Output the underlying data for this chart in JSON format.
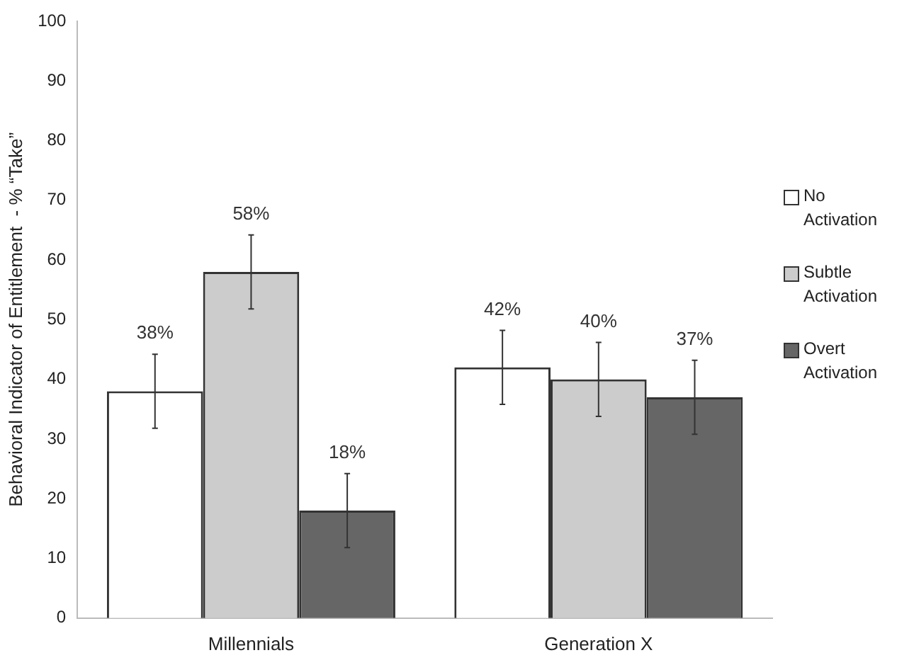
{
  "chart_data": {
    "type": "bar",
    "ylabel": "Behavioral Indicator of Entitlement  - % “Take”",
    "categories": [
      "Millennials",
      "Generation X"
    ],
    "series": [
      {
        "name": "No Activation",
        "color": "#ffffff",
        "values": [
          38,
          42
        ],
        "errors": [
          6.2,
          6.2
        ],
        "value_labels": [
          "38%",
          "42%"
        ]
      },
      {
        "name": "Subtle Activation",
        "color": "#cccccc",
        "values": [
          58,
          40
        ],
        "errors": [
          6.2,
          6.2
        ],
        "value_labels": [
          "58%",
          "40%"
        ]
      },
      {
        "name": "Overt Activation",
        "color": "#666666",
        "values": [
          18,
          37
        ],
        "errors": [
          6.2,
          6.2
        ],
        "value_labels": [
          "18%",
          "37%"
        ]
      }
    ],
    "ylim": [
      0,
      100
    ],
    "yticks": [
      0,
      10,
      20,
      30,
      40,
      50,
      60,
      70,
      80,
      90,
      100
    ],
    "grid": false,
    "legend": "right"
  }
}
